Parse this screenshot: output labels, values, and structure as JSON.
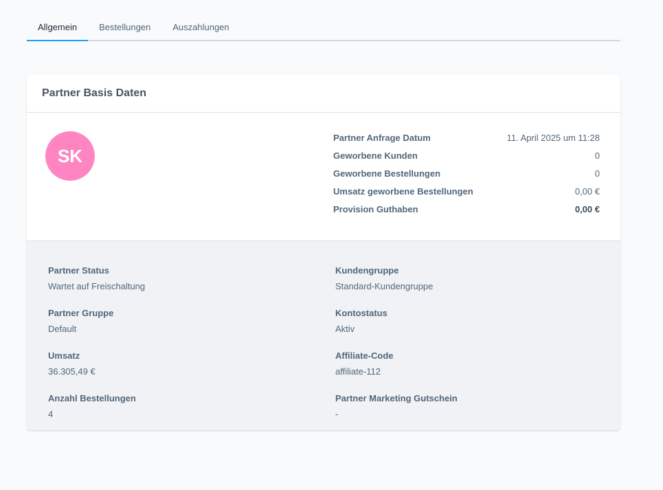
{
  "tabs": [
    {
      "label": "Allgemein",
      "active": true
    },
    {
      "label": "Bestellungen"
    },
    {
      "label": "Auszahlungen"
    }
  ],
  "card": {
    "title": "Partner Basis Daten",
    "avatar": {
      "initials": "SK",
      "color": "#ff85c2"
    },
    "stats": [
      {
        "label": "Partner Anfrage Datum",
        "value": "11. April 2025 um 11:28"
      },
      {
        "label": "Geworbene Kunden",
        "value": "0"
      },
      {
        "label": "Geworbene Bestellungen",
        "value": "0"
      },
      {
        "label": "Umsatz geworbene Bestellungen",
        "value": "0,00 €"
      },
      {
        "label": "Provision Guthaben",
        "value": "0,00 €"
      }
    ],
    "fields": [
      {
        "label": "Partner Status",
        "value": "Wartet auf Freischaltung"
      },
      {
        "label": "Kundengruppe",
        "value": "Standard-Kundengruppe"
      },
      {
        "label": "Partner Gruppe",
        "value": "Default"
      },
      {
        "label": "Kontostatus",
        "value": "Aktiv"
      },
      {
        "label": "Umsatz",
        "value": "36.305,49 €"
      },
      {
        "label": "Affiliate-Code",
        "value": "affiliate-112"
      },
      {
        "label": "Anzahl Bestellungen",
        "value": "4"
      },
      {
        "label": "Partner Marketing Gutschein",
        "value": "-"
      }
    ]
  },
  "colors": {
    "accent": "#189eff",
    "background": "#f9fafb"
  }
}
